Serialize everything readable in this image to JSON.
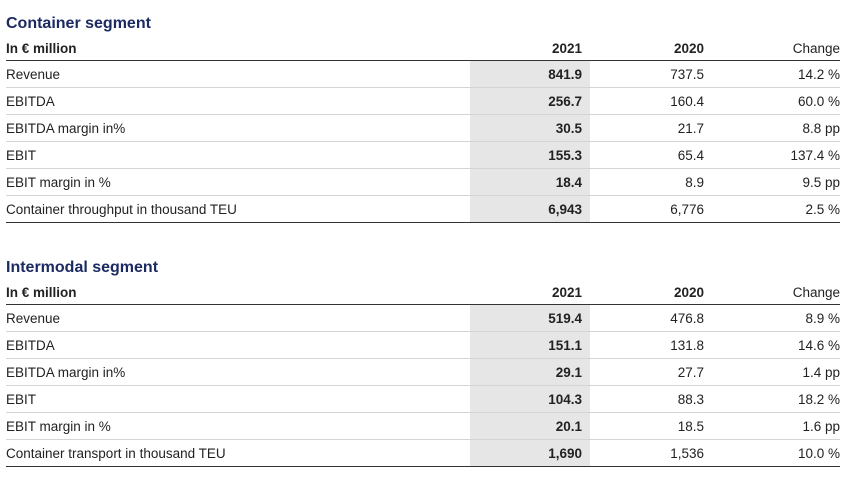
{
  "container": {
    "title": "Container segment",
    "header": {
      "label": "In € million",
      "y2021": "2021",
      "y2020": "2020",
      "change": "Change"
    },
    "rows": [
      {
        "label": "Revenue",
        "y2021": "841.9",
        "y2020": "737.5",
        "change": "14.2 %"
      },
      {
        "label": "EBITDA",
        "y2021": "256.7",
        "y2020": "160.4",
        "change": "60.0 %"
      },
      {
        "label": "EBITDA margin in%",
        "y2021": "30.5",
        "y2020": "21.7",
        "change": "8.8 pp"
      },
      {
        "label": "EBIT",
        "y2021": "155.3",
        "y2020": "65.4",
        "change": "137.4 %"
      },
      {
        "label": "EBIT margin in %",
        "y2021": "18.4",
        "y2020": "8.9",
        "change": "9.5 pp"
      },
      {
        "label": "Container throughput in thousand TEU",
        "y2021": "6,943",
        "y2020": "6,776",
        "change": "2.5 %"
      }
    ]
  },
  "intermodal": {
    "title": "Intermodal segment",
    "header": {
      "label": "In € million",
      "y2021": "2021",
      "y2020": "2020",
      "change": "Change"
    },
    "rows": [
      {
        "label": "Revenue",
        "y2021": "519.4",
        "y2020": "476.8",
        "change": "8.9 %"
      },
      {
        "label": "EBITDA",
        "y2021": "151.1",
        "y2020": "131.8",
        "change": "14.6 %"
      },
      {
        "label": "EBITDA margin in%",
        "y2021": "29.1",
        "y2020": "27.7",
        "change": "1.4 pp"
      },
      {
        "label": "EBIT",
        "y2021": "104.3",
        "y2020": "88.3",
        "change": "18.2 %"
      },
      {
        "label": "EBIT margin in %",
        "y2021": "20.1",
        "y2020": "18.5",
        "change": "1.6 pp"
      },
      {
        "label": "Container transport in thousand TEU",
        "y2021": "1,690",
        "y2020": "1,536",
        "change": "10.0 %"
      }
    ]
  }
}
